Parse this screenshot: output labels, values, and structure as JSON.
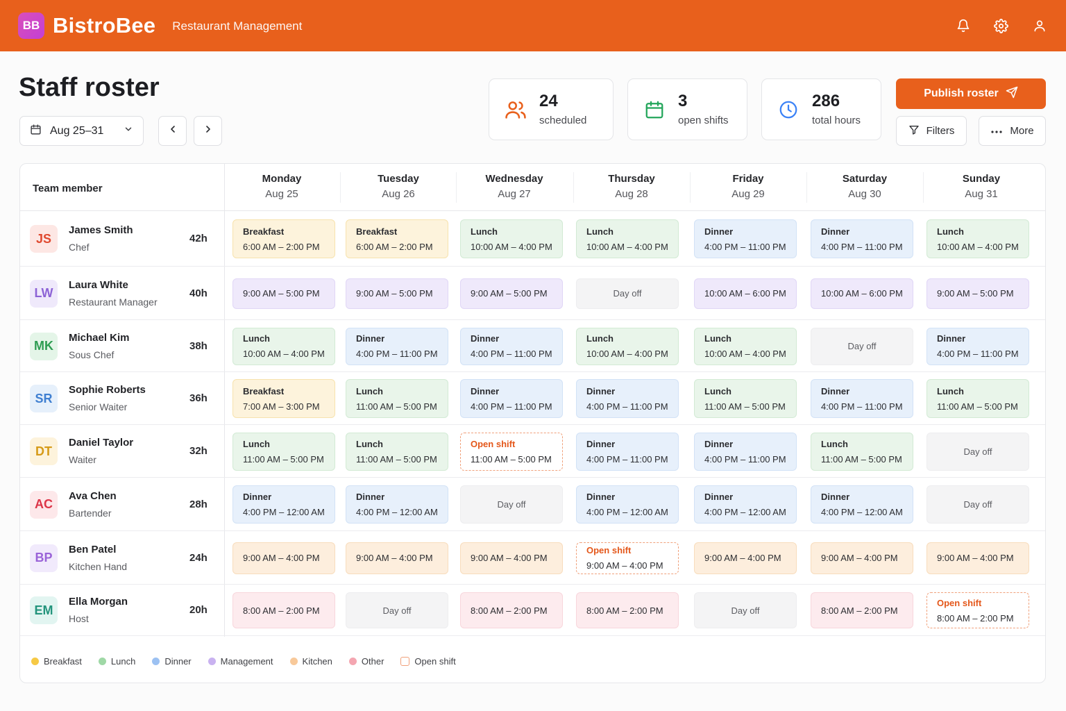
{
  "app": {
    "logo": "BB",
    "brand": "BistroBee",
    "subtitle": "Restaurant Management"
  },
  "topbar_icons": [
    "bell-icon",
    "gear-icon",
    "user-icon"
  ],
  "page_title": "Staff roster",
  "date_range": "Aug 25–31",
  "stats": [
    {
      "value": "24",
      "label": "scheduled",
      "icon": "users-icon",
      "color": "#e8601c"
    },
    {
      "value": "3",
      "label": "open shifts",
      "icon": "calendar-icon",
      "color": "#22a55a"
    },
    {
      "value": "286",
      "label": "total hours",
      "icon": "clock-icon",
      "color": "#3b82f6"
    }
  ],
  "actions": {
    "publish": "Publish roster",
    "filters": "Filters",
    "more": "More"
  },
  "table": {
    "team_header": "Team member",
    "days": [
      {
        "name": "Monday",
        "date": "Aug 25"
      },
      {
        "name": "Tuesday",
        "date": "Aug 26"
      },
      {
        "name": "Wednesday",
        "date": "Aug 27"
      },
      {
        "name": "Thursday",
        "date": "Aug 28"
      },
      {
        "name": "Friday",
        "date": "Aug 29"
      },
      {
        "name": "Saturday",
        "date": "Aug 30"
      },
      {
        "name": "Sunday",
        "date": "Aug 31"
      }
    ]
  },
  "colors": {
    "breakfast": {
      "bg": "#fdf3dc",
      "border": "#f7e2ad",
      "dot": "#f6c945"
    },
    "lunch": {
      "bg": "#e9f5ea",
      "border": "#d2ead4",
      "dot": "#9fd8a6"
    },
    "dinner": {
      "bg": "#e7f0fb",
      "border": "#d2e2f6",
      "dot": "#9cc1f2"
    },
    "management": {
      "bg": "#efe9fb",
      "border": "#e0d6f6",
      "dot": "#c9b2f0"
    },
    "kitchen": {
      "bg": "#fdeedd",
      "border": "#f8dcbc",
      "dot": "#f8c99a"
    },
    "other": {
      "bg": "#fdebee",
      "border": "#f8d6dc",
      "dot": "#f4a6b1"
    }
  },
  "members": [
    {
      "initials": "JS",
      "name": "James Smith",
      "role": "Chef",
      "hours": "42h",
      "avatar_bg": "#fde7e4",
      "avatar_fg": "#e0492f",
      "shifts": [
        {
          "kind": "breakfast",
          "title": "Breakfast",
          "time": "6:00 AM – 2:00 PM"
        },
        {
          "kind": "breakfast",
          "title": "Breakfast",
          "time": "6:00 AM – 2:00 PM"
        },
        {
          "kind": "lunch",
          "title": "Lunch",
          "time": "10:00 AM – 4:00 PM"
        },
        {
          "kind": "lunch",
          "title": "Lunch",
          "time": "10:00 AM – 4:00 PM"
        },
        {
          "kind": "dinner",
          "title": "Dinner",
          "time": "4:00 PM – 11:00 PM"
        },
        {
          "kind": "dinner",
          "title": "Dinner",
          "time": "4:00 PM – 11:00 PM"
        },
        {
          "kind": "lunch",
          "title": "Lunch",
          "time": "10:00 AM – 4:00 PM"
        }
      ]
    },
    {
      "initials": "LW",
      "name": "Laura White",
      "role": "Restaurant Manager",
      "hours": "40h",
      "avatar_bg": "#efe9fb",
      "avatar_fg": "#8d63d6",
      "shifts": [
        {
          "kind": "management",
          "title": "",
          "time": "9:00 AM – 5:00 PM"
        },
        {
          "kind": "management",
          "title": "",
          "time": "9:00 AM – 5:00 PM"
        },
        {
          "kind": "management",
          "title": "",
          "time": "9:00 AM – 5:00 PM"
        },
        {
          "kind": "off",
          "title": "",
          "time": "Day off"
        },
        {
          "kind": "management",
          "title": "",
          "time": "10:00 AM – 6:00 PM"
        },
        {
          "kind": "management",
          "title": "",
          "time": "10:00 AM – 6:00 PM"
        },
        {
          "kind": "management",
          "title": "",
          "time": "9:00 AM – 5:00 PM"
        }
      ]
    },
    {
      "initials": "MK",
      "name": "Michael Kim",
      "role": "Sous Chef",
      "hours": "38h",
      "avatar_bg": "#e4f5e8",
      "avatar_fg": "#2e9d52",
      "shifts": [
        {
          "kind": "lunch",
          "title": "Lunch",
          "time": "10:00 AM – 4:00 PM"
        },
        {
          "kind": "dinner",
          "title": "Dinner",
          "time": "4:00 PM – 11:00 PM"
        },
        {
          "kind": "dinner",
          "title": "Dinner",
          "time": "4:00 PM – 11:00 PM"
        },
        {
          "kind": "lunch",
          "title": "Lunch",
          "time": "10:00 AM – 4:00 PM"
        },
        {
          "kind": "lunch",
          "title": "Lunch",
          "time": "10:00 AM – 4:00 PM"
        },
        {
          "kind": "off",
          "title": "",
          "time": "Day off"
        },
        {
          "kind": "dinner",
          "title": "Dinner",
          "time": "4:00 PM – 11:00 PM"
        }
      ]
    },
    {
      "initials": "SR",
      "name": "Sophie Roberts",
      "role": "Senior Waiter",
      "hours": "36h",
      "avatar_bg": "#e6f0fb",
      "avatar_fg": "#3f7fd1",
      "shifts": [
        {
          "kind": "breakfast",
          "title": "Breakfast",
          "time": "7:00 AM – 3:00 PM"
        },
        {
          "kind": "lunch",
          "title": "Lunch",
          "time": "11:00 AM – 5:00 PM"
        },
        {
          "kind": "dinner",
          "title": "Dinner",
          "time": "4:00 PM – 11:00 PM"
        },
        {
          "kind": "dinner",
          "title": "Dinner",
          "time": "4:00 PM – 11:00 PM"
        },
        {
          "kind": "lunch",
          "title": "Lunch",
          "time": "11:00 AM – 5:00 PM"
        },
        {
          "kind": "dinner",
          "title": "Dinner",
          "time": "4:00 PM – 11:00 PM"
        },
        {
          "kind": "lunch",
          "title": "Lunch",
          "time": "11:00 AM – 5:00 PM"
        }
      ]
    },
    {
      "initials": "DT",
      "name": "Daniel Taylor",
      "role": "Waiter",
      "hours": "32h",
      "avatar_bg": "#fdf3dc",
      "avatar_fg": "#d69a17",
      "shifts": [
        {
          "kind": "lunch",
          "title": "Lunch",
          "time": "11:00 AM – 5:00 PM"
        },
        {
          "kind": "lunch",
          "title": "Lunch",
          "time": "11:00 AM – 5:00 PM"
        },
        {
          "kind": "open",
          "title": "Open shift",
          "time": "11:00 AM – 5:00 PM"
        },
        {
          "kind": "dinner",
          "title": "Dinner",
          "time": "4:00 PM – 11:00 PM"
        },
        {
          "kind": "dinner",
          "title": "Dinner",
          "time": "4:00 PM – 11:00 PM"
        },
        {
          "kind": "lunch",
          "title": "Lunch",
          "time": "11:00 AM – 5:00 PM"
        },
        {
          "kind": "off",
          "title": "",
          "time": "Day off"
        }
      ]
    },
    {
      "initials": "AC",
      "name": "Ava Chen",
      "role": "Bartender",
      "hours": "28h",
      "avatar_bg": "#fde8ea",
      "avatar_fg": "#dc3548",
      "shifts": [
        {
          "kind": "dinner",
          "title": "Dinner",
          "time": "4:00 PM – 12:00 AM"
        },
        {
          "kind": "dinner",
          "title": "Dinner",
          "time": "4:00 PM – 12:00 AM"
        },
        {
          "kind": "off",
          "title": "",
          "time": "Day off"
        },
        {
          "kind": "dinner",
          "title": "Dinner",
          "time": "4:00 PM – 12:00 AM"
        },
        {
          "kind": "dinner",
          "title": "Dinner",
          "time": "4:00 PM – 12:00 AM"
        },
        {
          "kind": "dinner",
          "title": "Dinner",
          "time": "4:00 PM – 12:00 AM"
        },
        {
          "kind": "off",
          "title": "",
          "time": "Day off"
        }
      ]
    },
    {
      "initials": "BP",
      "name": "Ben Patel",
      "role": "Kitchen Hand",
      "hours": "24h",
      "avatar_bg": "#f1eafc",
      "avatar_fg": "#9a63d8",
      "shifts": [
        {
          "kind": "kitchen",
          "title": "",
          "time": "9:00 AM – 4:00 PM"
        },
        {
          "kind": "kitchen",
          "title": "",
          "time": "9:00 AM – 4:00 PM"
        },
        {
          "kind": "kitchen",
          "title": "",
          "time": "9:00 AM – 4:00 PM"
        },
        {
          "kind": "open",
          "title": "Open shift",
          "time": "9:00 AM – 4:00 PM"
        },
        {
          "kind": "kitchen",
          "title": "",
          "time": "9:00 AM – 4:00 PM"
        },
        {
          "kind": "kitchen",
          "title": "",
          "time": "9:00 AM – 4:00 PM"
        },
        {
          "kind": "kitchen",
          "title": "",
          "time": "9:00 AM – 4:00 PM"
        }
      ]
    },
    {
      "initials": "EM",
      "name": "Ella Morgan",
      "role": "Host",
      "hours": "20h",
      "avatar_bg": "#e2f5f1",
      "avatar_fg": "#23947c",
      "shifts": [
        {
          "kind": "other",
          "title": "",
          "time": "8:00 AM – 2:00 PM"
        },
        {
          "kind": "off",
          "title": "",
          "time": "Day off"
        },
        {
          "kind": "other",
          "title": "",
          "time": "8:00 AM – 2:00 PM"
        },
        {
          "kind": "other",
          "title": "",
          "time": "8:00 AM – 2:00 PM"
        },
        {
          "kind": "off",
          "title": "",
          "time": "Day off"
        },
        {
          "kind": "other",
          "title": "",
          "time": "8:00 AM – 2:00 PM"
        },
        {
          "kind": "open",
          "title": "Open shift",
          "time": "8:00 AM – 2:00 PM"
        }
      ]
    }
  ],
  "legend": [
    {
      "key": "breakfast",
      "label": "Breakfast"
    },
    {
      "key": "lunch",
      "label": "Lunch"
    },
    {
      "key": "dinner",
      "label": "Dinner"
    },
    {
      "key": "management",
      "label": "Management"
    },
    {
      "key": "kitchen",
      "label": "Kitchen"
    },
    {
      "key": "other",
      "label": "Other"
    },
    {
      "key": "open",
      "label": "Open shift"
    }
  ]
}
